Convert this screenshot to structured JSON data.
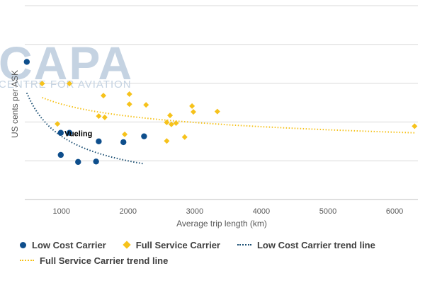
{
  "chart_data": {
    "type": "scatter",
    "xlabel": "Average trip length (km)",
    "ylabel": "US cents per ASK",
    "x_ticks": [
      "1000",
      "2000",
      "3000",
      "4000",
      "5000",
      "6000"
    ],
    "xlim": [
      450,
      6350
    ],
    "ylim": [
      0,
      5
    ],
    "gridlines": 5,
    "grid": true,
    "legend_position": "bottom",
    "series": [
      {
        "name": "Low Cost Carrier",
        "marker": "circle",
        "color": "#0e4e8c",
        "points": [
          {
            "x": 480,
            "y": 3.55
          },
          {
            "x": 990,
            "y": 1.72
          },
          {
            "x": 1120,
            "y": 1.72
          },
          {
            "x": 990,
            "y": 1.15
          },
          {
            "x": 1250,
            "y": 0.97
          },
          {
            "x": 1520,
            "y": 0.98
          },
          {
            "x": 1560,
            "y": 1.5
          },
          {
            "x": 1930,
            "y": 1.48
          },
          {
            "x": 2240,
            "y": 1.63
          }
        ]
      },
      {
        "name": "Full Service Carrier",
        "marker": "diamond",
        "color": "#f6c21b",
        "points": [
          {
            "x": 710,
            "y": 2.99
          },
          {
            "x": 1120,
            "y": 2.99
          },
          {
            "x": 940,
            "y": 1.95
          },
          {
            "x": 1560,
            "y": 2.15
          },
          {
            "x": 1650,
            "y": 2.12
          },
          {
            "x": 1630,
            "y": 2.68
          },
          {
            "x": 2020,
            "y": 2.72
          },
          {
            "x": 2020,
            "y": 2.46
          },
          {
            "x": 2270,
            "y": 2.44
          },
          {
            "x": 1950,
            "y": 1.68
          },
          {
            "x": 2580,
            "y": 1.99
          },
          {
            "x": 2630,
            "y": 2.17
          },
          {
            "x": 2650,
            "y": 1.94
          },
          {
            "x": 2720,
            "y": 1.97
          },
          {
            "x": 2580,
            "y": 1.51
          },
          {
            "x": 2850,
            "y": 1.61
          },
          {
            "x": 2960,
            "y": 2.41
          },
          {
            "x": 2980,
            "y": 2.26
          },
          {
            "x": 3340,
            "y": 2.27
          },
          {
            "x": 6300,
            "y": 1.89
          }
        ]
      }
    ],
    "trendlines": [
      {
        "name": "Low Cost Carrier trend line",
        "color": "#1b4f73",
        "from_x": 480,
        "to_x": 2240,
        "y_start": 2.75,
        "y_end": 0.92
      },
      {
        "name": "Full Service Carrier trend line",
        "color": "#f6c21b",
        "from_x": 710,
        "to_x": 6300,
        "y_start": 2.63,
        "y_end": 1.72
      }
    ],
    "annotations": [
      {
        "text": "Vueling",
        "x": 1120,
        "y": 1.72
      }
    ]
  },
  "watermark": {
    "main": "CAPA",
    "sub": "CENTRE FOR AVIATION"
  },
  "legend": {
    "lcc": "Low Cost Carrier",
    "fsc": "Full Service Carrier",
    "lcc_trend": "Low Cost Carrier trend line",
    "fsc_trend": "Full Service Carrier trend line"
  }
}
